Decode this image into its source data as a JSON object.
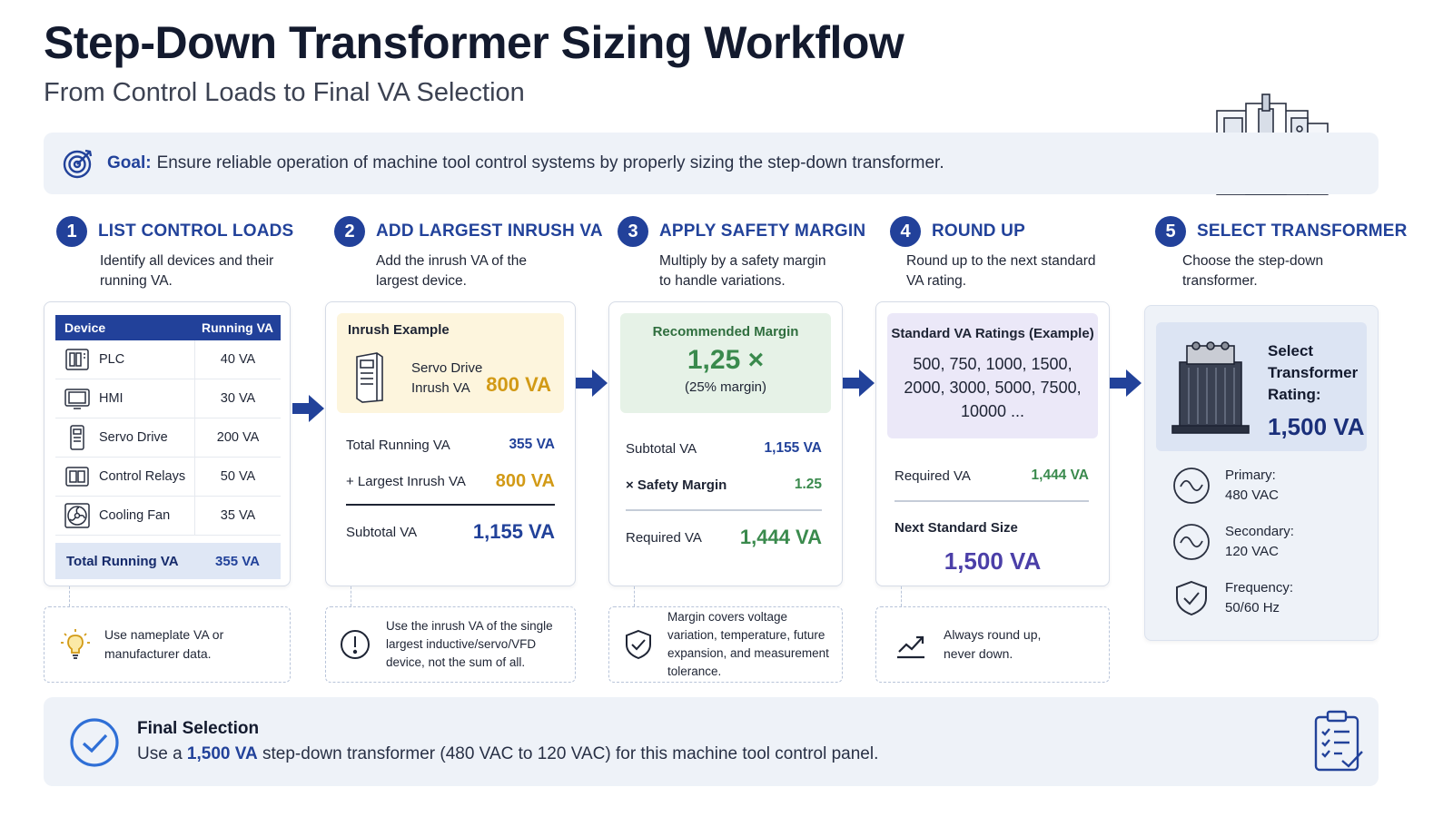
{
  "title": "Step-Down Transformer Sizing Workflow",
  "subtitle": "From Control Loads to Final VA Selection",
  "goal": {
    "label": "Goal:",
    "text": "Ensure reliable operation of machine tool control systems by properly sizing the step-down transformer.",
    "icon": "target-icon"
  },
  "steps": [
    {
      "num": "1",
      "title": "LIST CONTROL LOADS",
      "desc": "Identify all devices and their running VA."
    },
    {
      "num": "2",
      "title": "ADD LARGEST INRUSH VA",
      "desc": "Add the inrush VA of the largest device."
    },
    {
      "num": "3",
      "title": "APPLY SAFETY MARGIN",
      "desc": "Multiply by a safety margin to handle variations."
    },
    {
      "num": "4",
      "title": "ROUND UP",
      "desc": "Round up to the next standard VA rating."
    },
    {
      "num": "5",
      "title": "SELECT TRANSFORMER",
      "desc": "Choose the step-down transformer."
    }
  ],
  "loads_table": {
    "headers": [
      "Device",
      "Running VA"
    ],
    "rows": [
      {
        "device": "PLC",
        "va": "40 VA",
        "icon": "plc-icon"
      },
      {
        "device": "HMI",
        "va": "30 VA",
        "icon": "hmi-icon"
      },
      {
        "device": "Servo Drive",
        "va": "200 VA",
        "icon": "servo-drive-icon"
      },
      {
        "device": "Control Relays",
        "va": "50 VA",
        "icon": "relay-icon"
      },
      {
        "device": "Cooling Fan",
        "va": "35 VA",
        "icon": "fan-icon"
      }
    ],
    "total_label": "Total Running VA",
    "total_value": "355 VA"
  },
  "inrush": {
    "panel_title": "Inrush Example",
    "device_line1": "Servo Drive",
    "device_line2": "Inrush VA",
    "value": "800 VA",
    "total_running_label": "Total Running VA",
    "total_running_value": "355 VA",
    "largest_label": "+ Largest Inrush VA",
    "largest_value": "800 VA",
    "subtotal_label": "Subtotal VA",
    "subtotal_value": "1,155 VA"
  },
  "margin": {
    "panel_title": "Recommended Margin",
    "factor": "1,25 ×",
    "percent": "(25% margin)",
    "subtotal_label": "Subtotal VA",
    "subtotal_value": "1,155 VA",
    "safety_label": "× Safety Margin",
    "safety_value": "1.25",
    "required_label": "Required VA",
    "required_value": "1,444 VA"
  },
  "roundup": {
    "panel_title": "Standard VA Ratings (Example)",
    "ratings_line1": "500, 750, 1000, 1500,",
    "ratings_line2": "2000, 3000, 5000, 7500,",
    "ratings_line3": "10000 ...",
    "required_label": "Required VA",
    "required_value": "1,444 VA",
    "next_label": "Next Standard Size",
    "next_value": "1,500 VA"
  },
  "select": {
    "line1": "Select",
    "line2": "Transformer",
    "line3": "Rating:",
    "value": "1,500 VA",
    "specs": [
      {
        "label": "Primary:",
        "value": "480 VAC",
        "icon": "sine-wave-icon"
      },
      {
        "label": "Secondary:",
        "value": "120 VAC",
        "icon": "sine-wave-icon"
      },
      {
        "label": "Frequency:",
        "value": "50/60 Hz",
        "icon": "shield-check-icon"
      }
    ]
  },
  "notes": [
    {
      "text": "Use nameplate VA or manufacturer data.",
      "icon": "lightbulb-icon"
    },
    {
      "text": "Use the inrush VA of the single largest inductive/servo/VFD device, not the sum of all.",
      "icon": "alert-icon"
    },
    {
      "text": "Margin covers voltage variation, temperature, future expansion, and measurement tolerance.",
      "icon": "shield-check-icon"
    },
    {
      "text": "Always round up, never down.",
      "icon": "trend-up-icon"
    }
  ],
  "final": {
    "title": "Final Selection",
    "prefix": "Use a",
    "highlight": "1,500 VA",
    "suffix": "step-down transformer (480 VAC to 120 VAC) for this machine tool control panel."
  },
  "colors": {
    "primary": "#22429a",
    "gold": "#d29a16",
    "green": "#3a8a4d",
    "purple": "#4b3fa8",
    "light_panel": "#eef2f8"
  }
}
